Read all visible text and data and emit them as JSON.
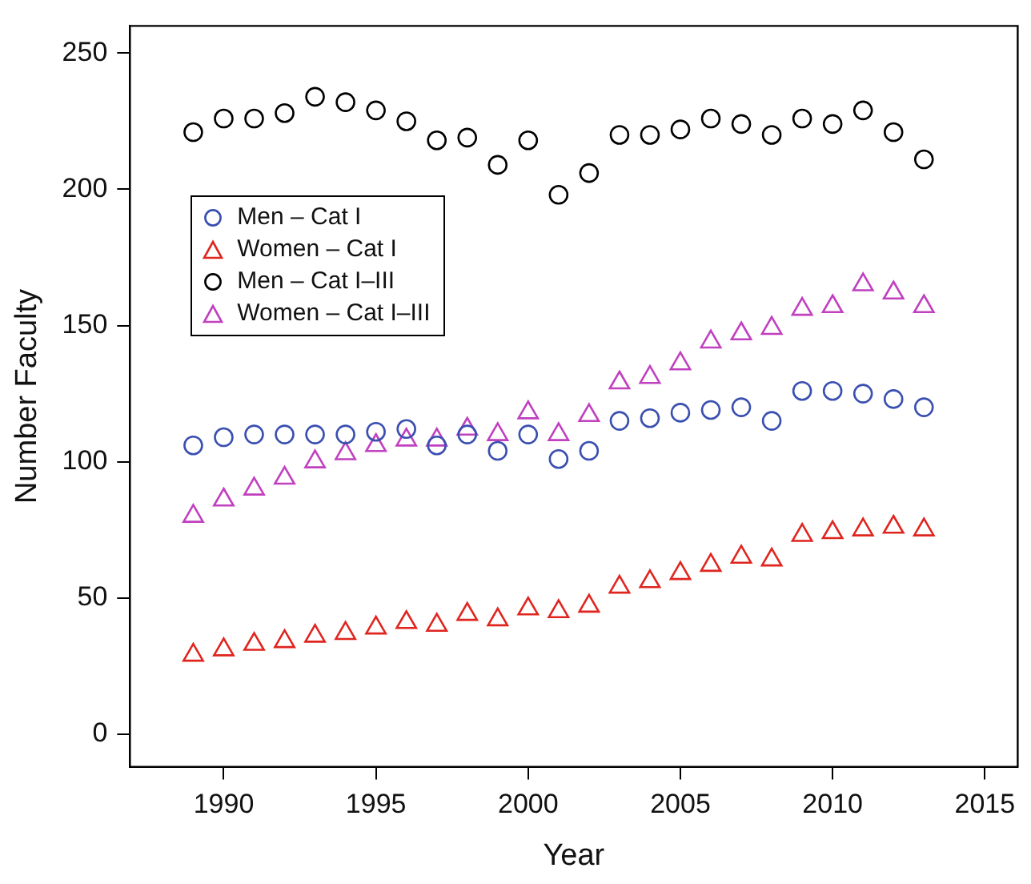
{
  "chart_data": {
    "type": "scatter",
    "xlabel": "Year",
    "ylabel": "Number Faculty",
    "xlim": [
      1986.92,
      2016.08
    ],
    "xticks": [
      1990,
      1995,
      2000,
      2005,
      2010,
      2015
    ],
    "ylim": [
      -12,
      260
    ],
    "yticks": [
      0,
      50,
      100,
      150,
      200,
      250
    ],
    "grid": false,
    "legend": "top left",
    "x": [
      1989,
      1990,
      1991,
      1992,
      1993,
      1994,
      1995,
      1996,
      1997,
      1998,
      1999,
      2000,
      2001,
      2002,
      2003,
      2004,
      2005,
      2006,
      2007,
      2008,
      2009,
      2010,
      2011,
      2012,
      2013
    ],
    "series": [
      {
        "name": "Men – Cat I",
        "color": "#3a4fb0",
        "marker": "circle",
        "values": [
          106,
          109,
          110,
          110,
          110,
          110,
          111,
          112,
          106,
          110,
          104,
          110,
          101,
          104,
          115,
          116,
          118,
          119,
          120,
          115,
          126,
          126,
          125,
          123,
          120
        ]
      },
      {
        "name": "Women – Cat I",
        "color": "#e0251f",
        "marker": "triangle",
        "values": [
          29,
          31,
          33,
          34,
          36,
          37,
          39,
          41,
          40,
          44,
          42,
          46,
          45,
          47,
          54,
          56,
          59,
          62,
          65,
          64,
          73,
          74,
          75,
          76,
          75
        ]
      },
      {
        "name": "Men – Cat I–III",
        "color": "#000000",
        "marker": "circle",
        "values": [
          221,
          226,
          226,
          228,
          234,
          232,
          229,
          225,
          218,
          219,
          209,
          218,
          198,
          206,
          220,
          220,
          222,
          226,
          224,
          220,
          226,
          224,
          229,
          221,
          211
        ]
      },
      {
        "name": "Women – Cat I–III",
        "color": "#c040c0",
        "marker": "triangle",
        "values": [
          80,
          86,
          90,
          94,
          100,
          103,
          106,
          108,
          108,
          112,
          110,
          118,
          110,
          117,
          129,
          131,
          136,
          144,
          147,
          149,
          156,
          157,
          165,
          162,
          157
        ]
      }
    ]
  }
}
